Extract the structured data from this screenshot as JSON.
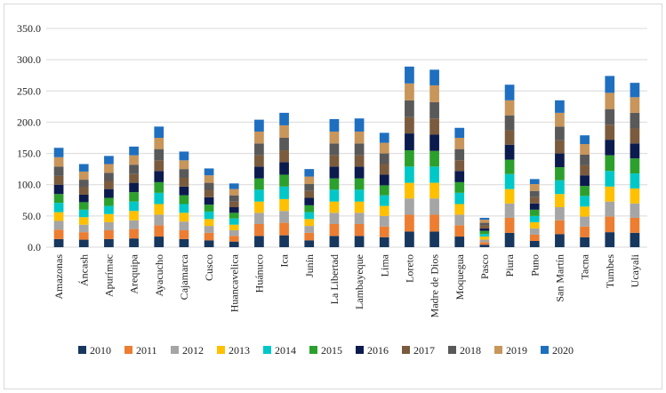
{
  "chart_data": {
    "type": "bar",
    "stacked": true,
    "title": "",
    "xlabel": "",
    "ylabel": "",
    "ylim": [
      0,
      350
    ],
    "yticks": [
      "0.0",
      "50.0",
      "100.0",
      "150.0",
      "200.0",
      "250.0",
      "300.0",
      "350.0"
    ],
    "grid": "horizontal",
    "legend_position": "bottom",
    "categories": [
      "Amazonas",
      "Áncash",
      "Apurímac",
      "Arequipa",
      "Ayacucho",
      "Cajamarca",
      "Cusco",
      "Huancavelica",
      "Huánuco",
      "Ica",
      "Junín",
      "La Libertad",
      "Lambayeque",
      "Lima",
      "Loreto",
      "Madre de Dios",
      "Moquegua",
      "Pasco",
      "Piura",
      "Puno",
      "San Martín",
      "Tacna",
      "Tumbes",
      "Ucayali"
    ],
    "series": [
      {
        "name": "2010",
        "color": "#17375e",
        "values": [
          13,
          12,
          13,
          14,
          17,
          13,
          11,
          9,
          18,
          19,
          11,
          18,
          18,
          16,
          25,
          25,
          17,
          4,
          23,
          10,
          21,
          16,
          24,
          23
        ]
      },
      {
        "name": "2011",
        "color": "#ed7d31",
        "values": [
          15,
          12,
          14,
          15,
          18,
          14,
          12,
          9,
          19,
          20,
          12,
          19,
          19,
          17,
          27,
          27,
          18,
          4,
          24,
          10,
          22,
          17,
          25,
          24
        ]
      },
      {
        "name": "2012",
        "color": "#a5a5a5",
        "values": [
          14,
          12,
          13,
          14,
          17,
          14,
          11,
          9,
          18,
          19,
          11,
          18,
          18,
          17,
          26,
          26,
          17,
          4,
          23,
          10,
          21,
          16,
          24,
          23
        ]
      },
      {
        "name": "2013",
        "color": "#ffc000",
        "values": [
          14,
          12,
          13,
          15,
          17,
          14,
          11,
          9,
          18,
          19,
          11,
          18,
          18,
          16,
          25,
          25,
          17,
          5,
          23,
          10,
          21,
          16,
          24,
          24
        ]
      },
      {
        "name": "2014",
        "color": "#00c8c8",
        "values": [
          15,
          12,
          13,
          15,
          18,
          14,
          12,
          10,
          19,
          20,
          11,
          19,
          19,
          17,
          26,
          26,
          18,
          4,
          24,
          10,
          22,
          17,
          25,
          24
        ]
      },
      {
        "name": "2015",
        "color": "#2ca02c",
        "values": [
          14,
          12,
          13,
          15,
          17,
          14,
          11,
          9,
          18,
          19,
          11,
          18,
          18,
          16,
          26,
          25,
          17,
          5,
          23,
          10,
          21,
          16,
          25,
          24
        ]
      },
      {
        "name": "2016",
        "color": "#0c1b4e",
        "values": [
          15,
          12,
          14,
          15,
          18,
          14,
          12,
          9,
          19,
          20,
          12,
          19,
          19,
          17,
          27,
          26,
          18,
          4,
          24,
          10,
          22,
          17,
          25,
          24
        ]
      },
      {
        "name": "2017",
        "color": "#7b5b3d",
        "values": [
          14,
          12,
          13,
          14,
          17,
          14,
          11,
          9,
          18,
          19,
          11,
          18,
          18,
          17,
          26,
          26,
          17,
          5,
          23,
          10,
          21,
          16,
          24,
          24
        ]
      },
      {
        "name": "2018",
        "color": "#595959",
        "values": [
          15,
          12,
          13,
          15,
          18,
          14,
          12,
          10,
          19,
          20,
          11,
          19,
          19,
          17,
          27,
          26,
          18,
          4,
          24,
          10,
          22,
          17,
          25,
          25
        ]
      },
      {
        "name": "2019",
        "color": "#c8955a",
        "values": [
          15,
          13,
          14,
          15,
          18,
          14,
          12,
          10,
          19,
          20,
          12,
          19,
          19,
          17,
          27,
          27,
          18,
          5,
          24,
          11,
          22,
          17,
          26,
          25
        ]
      },
      {
        "name": "2020",
        "color": "#1f6fc0",
        "values": [
          15,
          12,
          13,
          14,
          18,
          14,
          11,
          9,
          19,
          20,
          12,
          20,
          21,
          16,
          27,
          25,
          16,
          3,
          25,
          8,
          20,
          14,
          27,
          23
        ]
      }
    ]
  }
}
